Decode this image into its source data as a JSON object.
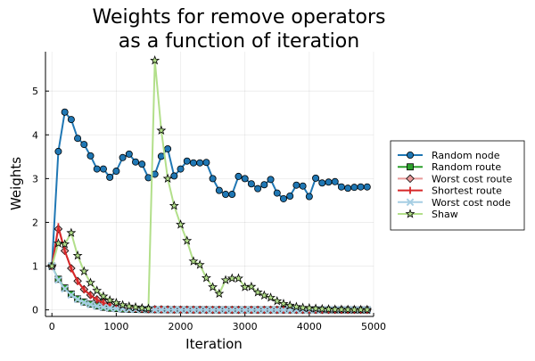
{
  "chart_data": {
    "type": "line",
    "title_lines": [
      "Weights for remove operators",
      "as a function of iteration"
    ],
    "xlabel": "Iteration",
    "ylabel": "Weights",
    "xlim": [
      -100,
      5000
    ],
    "ylim": [
      -0.15,
      5.9
    ],
    "xticks": [
      0,
      1000,
      2000,
      3000,
      4000,
      5000
    ],
    "yticks": [
      0,
      1,
      2,
      3,
      4,
      5
    ],
    "xtick_labels": [
      "0",
      "1000",
      "2000",
      "3000",
      "4000",
      "5000"
    ],
    "ytick_labels": [
      "0",
      "1",
      "2",
      "3",
      "4",
      "5"
    ],
    "grid": true,
    "legend_position": "right",
    "x": [
      0,
      100,
      200,
      300,
      400,
      500,
      600,
      700,
      800,
      900,
      1000,
      1100,
      1200,
      1300,
      1400,
      1500,
      1600,
      1700,
      1800,
      1900,
      2000,
      2100,
      2200,
      2300,
      2400,
      2500,
      2600,
      2700,
      2800,
      2900,
      3000,
      3100,
      3200,
      3300,
      3400,
      3500,
      3600,
      3700,
      3800,
      3900,
      4000,
      4100,
      4200,
      4300,
      4400,
      4500,
      4600,
      4700,
      4800,
      4900
    ],
    "series": [
      {
        "name": "Random node",
        "color": "#1f77b4",
        "marker": "circle",
        "values": [
          1.0,
          3.62,
          4.52,
          4.35,
          3.92,
          3.78,
          3.52,
          3.22,
          3.22,
          3.03,
          3.17,
          3.48,
          3.56,
          3.38,
          3.33,
          3.02,
          3.1,
          3.51,
          3.68,
          3.06,
          3.22,
          3.4,
          3.36,
          3.36,
          3.37,
          3.0,
          2.73,
          2.64,
          2.64,
          3.05,
          3.0,
          2.88,
          2.77,
          2.86,
          2.98,
          2.67,
          2.54,
          2.6,
          2.85,
          2.83,
          2.59,
          3.01,
          2.9,
          2.92,
          2.93,
          2.81,
          2.78,
          2.8,
          2.81,
          2.81
        ]
      },
      {
        "name": "Random route",
        "color": "#2ca02c",
        "marker": "square",
        "values": [
          1.0,
          0.7,
          0.5,
          0.36,
          0.25,
          0.18,
          0.13,
          0.09,
          0.06,
          0.04,
          0.03,
          0.02,
          0.015,
          0.01,
          0.008,
          0.006,
          0.005,
          0.004,
          0.003,
          0.002,
          0.002,
          0.001,
          0.001,
          0.001,
          0.001,
          0.0,
          0.0,
          0.0,
          0.0,
          0.0,
          0.0,
          0.0,
          0.0,
          0.0,
          0.0,
          0.0,
          0.0,
          0.0,
          0.0,
          0.0,
          0.0,
          0.0,
          0.0,
          0.0,
          0.0,
          0.0,
          0.0,
          0.0,
          0.0,
          0.0
        ]
      },
      {
        "name": "Worst cost route",
        "color": "#e89999",
        "marker": "diamond",
        "values": [
          1.0,
          1.85,
          1.35,
          0.95,
          0.66,
          0.47,
          0.34,
          0.24,
          0.17,
          0.12,
          0.09,
          0.065,
          0.047,
          0.034,
          0.025,
          0.018,
          0.013,
          0.01,
          0.007,
          0.005,
          0.004,
          0.003,
          0.002,
          0.001,
          0.001,
          0.001,
          0.0,
          0.0,
          0.0,
          0.0,
          0.0,
          0.0,
          0.0,
          0.0,
          0.0,
          0.0,
          0.0,
          0.0,
          0.0,
          0.0,
          0.0,
          0.0,
          0.0,
          0.0,
          0.0,
          0.0,
          0.0,
          0.0,
          0.0,
          0.0
        ]
      },
      {
        "name": "Shortest route",
        "color": "#d62728",
        "marker": "vline",
        "values": [
          1.0,
          1.9,
          1.35,
          0.94,
          0.65,
          0.46,
          0.33,
          0.23,
          0.16,
          0.11,
          0.08,
          0.06,
          0.045,
          0.032,
          0.023,
          0.017,
          0.012,
          0.009,
          0.006,
          0.004,
          0.003,
          0.002,
          0.002,
          0.001,
          0.001,
          0.001,
          0.0,
          0.0,
          0.0,
          0.0,
          0.0,
          0.0,
          0.0,
          0.0,
          0.0,
          0.0,
          0.0,
          0.0,
          0.0,
          0.0,
          0.0,
          0.0,
          0.0,
          0.0,
          0.0,
          0.0,
          0.0,
          0.0,
          0.0,
          0.0
        ]
      },
      {
        "name": "Worst cost node",
        "color": "#a6cee3",
        "marker": "xcross",
        "values": [
          1.0,
          0.68,
          0.48,
          0.34,
          0.24,
          0.17,
          0.12,
          0.085,
          0.06,
          0.042,
          0.03,
          0.021,
          0.015,
          0.011,
          0.008,
          0.006,
          0.004,
          0.003,
          0.002,
          0.002,
          0.001,
          0.001,
          0.001,
          0.0,
          0.0,
          0.0,
          0.0,
          0.0,
          0.0,
          0.0,
          0.0,
          0.0,
          0.0,
          0.0,
          0.0,
          0.0,
          0.0,
          0.0,
          0.0,
          0.0,
          0.0,
          0.0,
          0.0,
          0.0,
          0.0,
          0.0,
          0.0,
          0.0,
          0.0,
          0.0
        ]
      },
      {
        "name": "Shaw",
        "color": "#b2df8a",
        "marker": "star",
        "values": [
          1.0,
          1.52,
          1.5,
          1.76,
          1.24,
          0.88,
          0.62,
          0.44,
          0.31,
          0.22,
          0.16,
          0.11,
          0.08,
          0.06,
          0.04,
          0.03,
          5.7,
          4.1,
          3.0,
          2.38,
          1.95,
          1.58,
          1.11,
          1.03,
          0.73,
          0.52,
          0.37,
          0.68,
          0.72,
          0.72,
          0.52,
          0.53,
          0.4,
          0.33,
          0.28,
          0.2,
          0.14,
          0.1,
          0.07,
          0.05,
          0.04,
          0.03,
          0.02,
          0.015,
          0.01,
          0.008,
          0.006,
          0.004,
          0.003,
          0.002
        ]
      }
    ]
  }
}
